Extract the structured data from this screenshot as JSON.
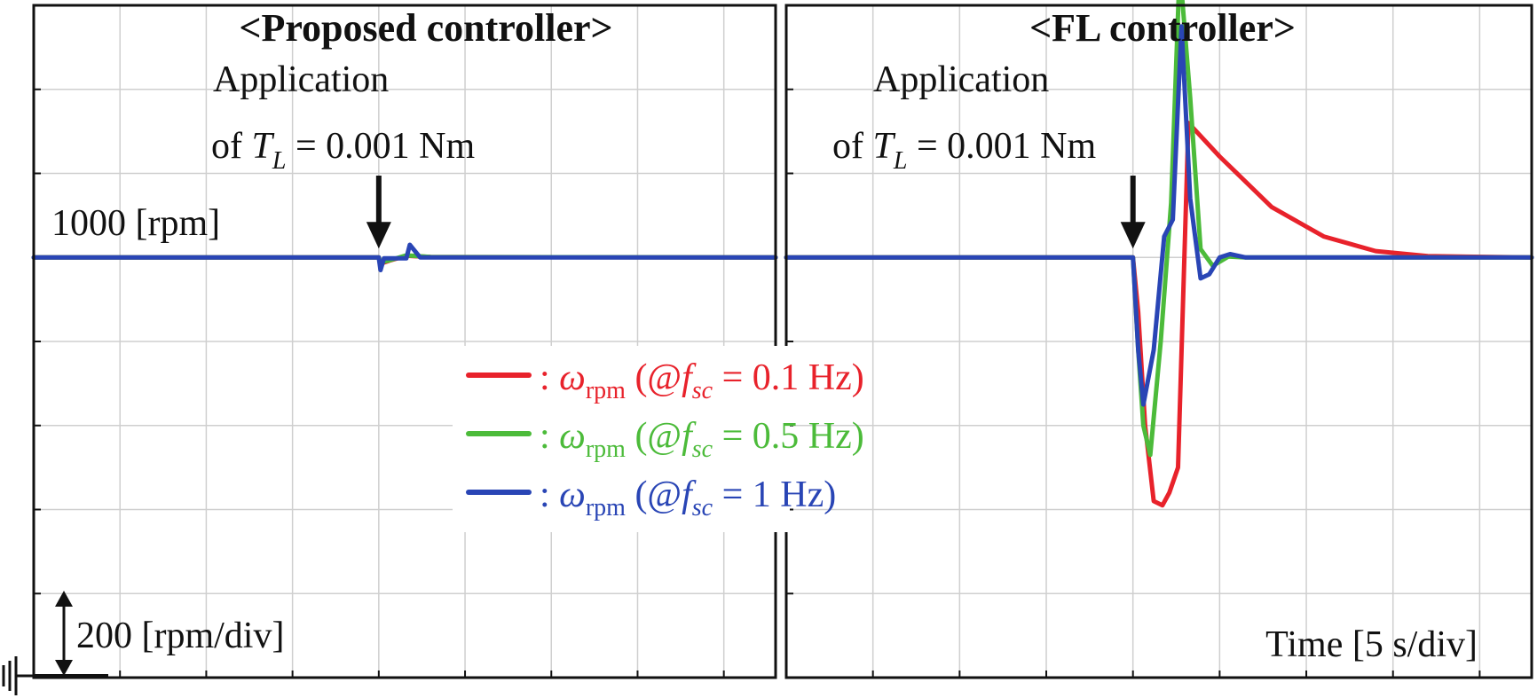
{
  "chart_data": [
    {
      "type": "line",
      "title": "<Proposed controller>",
      "annotation": {
        "line1": "Application",
        "line2_prefix": "of ",
        "line2_symbol": "T",
        "line2_sub": "L",
        "line2_suffix": " = 0.001 Nm",
        "time_s": 20
      },
      "reference_label": "1000 [rpm]",
      "scale_label": "200 [rpm/div]",
      "xlim": [
        0,
        43
      ],
      "ylim": [
        0,
        1600
      ],
      "grid": true,
      "series": [
        {
          "color": "#e8222b",
          "x": [
            0,
            20,
            20.1,
            20.6,
            21.6,
            23,
            43
          ],
          "y": [
            1000,
            1000,
            985,
            992,
            1004,
            1001,
            1000
          ]
        },
        {
          "color": "#4cbb3a",
          "x": [
            0,
            20,
            20.1,
            20.6,
            21.6,
            23,
            43
          ],
          "y": [
            1000,
            1000,
            988,
            993,
            1005,
            1001,
            1000
          ]
        },
        {
          "color": "#2945b5",
          "x": [
            0,
            20,
            20.1,
            20.3,
            21.6,
            21.8,
            22.4,
            43
          ],
          "y": [
            1000,
            1000,
            970,
            998,
            998,
            1030,
            1000,
            1000
          ]
        }
      ]
    },
    {
      "type": "line",
      "title": "<FL controller>",
      "annotation": {
        "line1": "Application",
        "line2_prefix": "of ",
        "line2_symbol": "T",
        "line2_sub": "L",
        "line2_suffix": " = 0.001 Nm",
        "time_s": 20
      },
      "time_label": "Time [5 s/div]",
      "xlim": [
        0,
        43
      ],
      "ylim": [
        0,
        1600
      ],
      "grid": true,
      "series": [
        {
          "color": "#e8222b",
          "x": [
            0,
            20,
            20.3,
            20.7,
            21.2,
            21.7,
            22.1,
            22.6,
            23.2,
            25,
            28,
            31,
            34,
            37,
            43
          ],
          "y": [
            1000,
            1000,
            870,
            600,
            420,
            410,
            440,
            500,
            1320,
            1240,
            1120,
            1050,
            1015,
            1003,
            1000
          ]
        },
        {
          "color": "#4cbb3a",
          "x": [
            0,
            20,
            20.3,
            20.6,
            21.0,
            21.6,
            22.2,
            22.7,
            23.3,
            23.9,
            24.6,
            25.5,
            26.5,
            43
          ],
          "y": [
            1000,
            1000,
            780,
            600,
            530,
            800,
            1130,
            1690,
            1380,
            1020,
            980,
            1002,
            1000,
            1000
          ]
        },
        {
          "color": "#2945b5",
          "x": [
            0,
            20,
            20.3,
            20.6,
            21.2,
            21.8,
            22.3,
            22.8,
            23.3,
            23.9,
            24.4,
            25.0,
            25.6,
            26.5,
            43
          ],
          "y": [
            1000,
            1000,
            780,
            650,
            780,
            1050,
            1090,
            1550,
            1140,
            950,
            960,
            1000,
            1008,
            1000,
            1000
          ]
        }
      ]
    }
  ],
  "legend": [
    {
      "color": "#e8222b",
      "prefix": ": ",
      "symbol": "ω",
      "sub": "rpm",
      "open": " (@",
      "f": "f",
      "fsub": "sc",
      "value": " = 0.1 Hz)"
    },
    {
      "color": "#4cbb3a",
      "prefix": ": ",
      "symbol": "ω",
      "sub": "rpm",
      "open": " (@",
      "f": "f",
      "fsub": "sc",
      "value": " = 0.5 Hz)"
    },
    {
      "color": "#2945b5",
      "prefix": ": ",
      "symbol": "ω",
      "sub": "rpm",
      "open": " (@",
      "f": "f",
      "fsub": "sc",
      "value": " = 1 Hz)"
    }
  ]
}
